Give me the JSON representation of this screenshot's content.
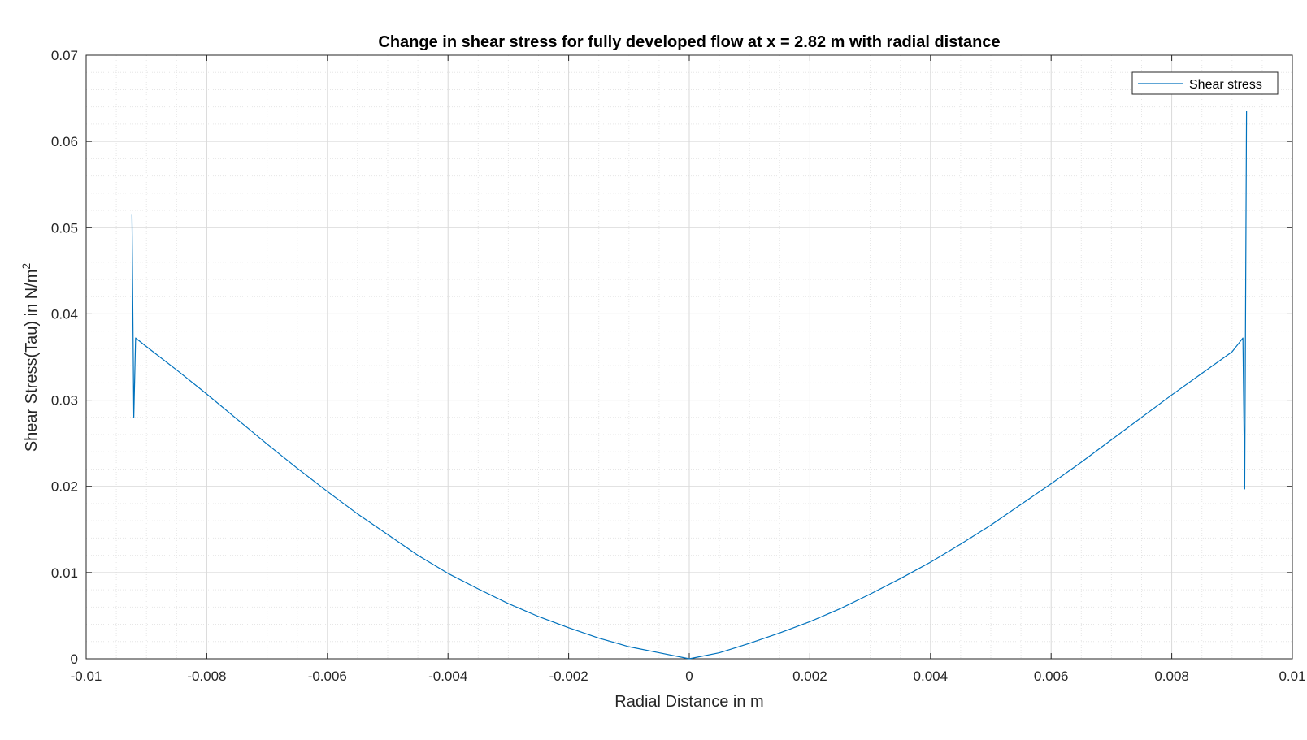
{
  "chart_data": {
    "type": "line",
    "title": "Change in shear stress for fully developed flow at x = 2.82 m with radial distance",
    "xlabel": "Radial Distance in m",
    "ylabel_main": "Shear Stress(Tau) in N/m",
    "ylabel_sup": "2",
    "xlim": [
      -0.01,
      0.01
    ],
    "ylim": [
      0,
      0.07
    ],
    "xticks": [
      -0.01,
      -0.008,
      -0.006,
      -0.004,
      -0.002,
      0,
      0.002,
      0.004,
      0.006,
      0.008,
      0.01
    ],
    "xtick_labels": [
      "-0.01",
      "-0.008",
      "-0.006",
      "-0.004",
      "-0.002",
      "0",
      "0.002",
      "0.004",
      "0.006",
      "0.008",
      "0.01"
    ],
    "yticks": [
      0,
      0.01,
      0.02,
      0.03,
      0.04,
      0.05,
      0.06,
      0.07
    ],
    "ytick_labels": [
      "0",
      "0.01",
      "0.02",
      "0.03",
      "0.04",
      "0.05",
      "0.06",
      "0.07"
    ],
    "grid": true,
    "minor_grid": true,
    "legend_position": "top-right",
    "series": [
      {
        "name": "Shear stress",
        "color": "#0072BD",
        "x": [
          -0.00924,
          -0.00921,
          -0.00918,
          -0.009,
          -0.0085,
          -0.008,
          -0.0075,
          -0.007,
          -0.0065,
          -0.006,
          -0.0055,
          -0.005,
          -0.0045,
          -0.004,
          -0.0035,
          -0.003,
          -0.0025,
          -0.002,
          -0.0015,
          -0.001,
          -0.0005,
          0,
          0.0005,
          0.001,
          0.0015,
          0.002,
          0.0025,
          0.003,
          0.0035,
          0.004,
          0.0045,
          0.005,
          0.0055,
          0.006,
          0.0065,
          0.007,
          0.0075,
          0.008,
          0.0085,
          0.009,
          0.00918,
          0.00921,
          0.00924
        ],
        "y": [
          0.0515,
          0.028,
          0.0372,
          0.0362,
          0.0335,
          0.0307,
          0.0278,
          0.0249,
          0.0221,
          0.0194,
          0.0168,
          0.0144,
          0.012,
          0.0099,
          0.0081,
          0.0064,
          0.0049,
          0.0036,
          0.0024,
          0.0014,
          0.0007,
          0,
          0.0007,
          0.0018,
          0.003,
          0.0043,
          0.0058,
          0.0075,
          0.0093,
          0.0112,
          0.0133,
          0.0155,
          0.0179,
          0.0203,
          0.0228,
          0.0254,
          0.028,
          0.0306,
          0.0331,
          0.0356,
          0.0372,
          0.0197,
          0.0635
        ]
      }
    ]
  }
}
